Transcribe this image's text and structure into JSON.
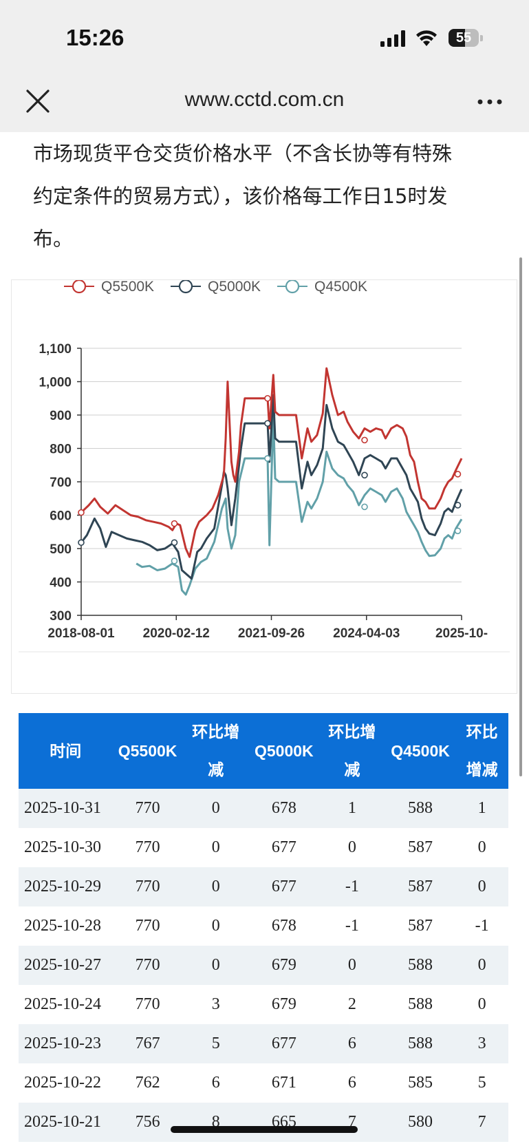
{
  "status_bar": {
    "time": "15:26",
    "battery_level": "55"
  },
  "browser": {
    "url": "www.cctd.com.cn"
  },
  "paragraph": {
    "lines": [
      "市场现货平仓交货价格水平（不含长协等有特殊",
      "约定条件的贸易方式），该价格每工作日15时发",
      "布。"
    ]
  },
  "chart_data": {
    "type": "line",
    "x_tick_labels": [
      "2018-08-01",
      "2020-02-12",
      "2021-09-26",
      "2024-04-03",
      "2025-10-"
    ],
    "y_ticks": [
      "1,100",
      "1,000",
      "900",
      "800",
      "700",
      "600",
      "500",
      "400",
      "300"
    ],
    "ylim": [
      300,
      1100
    ],
    "grid": true,
    "legend_position": "top-left",
    "series": [
      {
        "name": "Q5500K",
        "color": "#c23531",
        "points": [
          [
            0,
            608
          ],
          [
            0.02,
            630
          ],
          [
            0.035,
            650
          ],
          [
            0.05,
            625
          ],
          [
            0.07,
            605
          ],
          [
            0.09,
            630
          ],
          [
            0.11,
            615
          ],
          [
            0.13,
            600
          ],
          [
            0.15,
            595
          ],
          [
            0.17,
            585
          ],
          [
            0.19,
            580
          ],
          [
            0.21,
            575
          ],
          [
            0.23,
            565
          ],
          [
            0.24,
            555
          ],
          [
            0.25,
            575
          ],
          [
            0.26,
            570
          ],
          [
            0.275,
            500
          ],
          [
            0.285,
            475
          ],
          [
            0.3,
            555
          ],
          [
            0.31,
            580
          ],
          [
            0.32,
            590
          ],
          [
            0.33,
            600
          ],
          [
            0.345,
            620
          ],
          [
            0.36,
            660
          ],
          [
            0.375,
            720
          ],
          [
            0.38,
            830
          ],
          [
            0.385,
            1000
          ],
          [
            0.395,
            760
          ],
          [
            0.4,
            720
          ],
          [
            0.405,
            700
          ],
          [
            0.415,
            790
          ],
          [
            0.42,
            870
          ],
          [
            0.43,
            950
          ],
          [
            0.455,
            950
          ],
          [
            0.48,
            950
          ],
          [
            0.49,
            950
          ],
          [
            0.495,
            860
          ],
          [
            0.505,
            1020
          ],
          [
            0.51,
            910
          ],
          [
            0.52,
            900
          ],
          [
            0.55,
            900
          ],
          [
            0.565,
            900
          ],
          [
            0.58,
            770
          ],
          [
            0.595,
            860
          ],
          [
            0.605,
            820
          ],
          [
            0.62,
            840
          ],
          [
            0.635,
            905
          ],
          [
            0.645,
            1040
          ],
          [
            0.66,
            960
          ],
          [
            0.675,
            900
          ],
          [
            0.69,
            910
          ],
          [
            0.7,
            880
          ],
          [
            0.715,
            850
          ],
          [
            0.73,
            830
          ],
          [
            0.745,
            860
          ],
          [
            0.76,
            850
          ],
          [
            0.775,
            860
          ],
          [
            0.79,
            855
          ],
          [
            0.8,
            830
          ],
          [
            0.815,
            860
          ],
          [
            0.83,
            870
          ],
          [
            0.845,
            860
          ],
          [
            0.855,
            835
          ],
          [
            0.865,
            780
          ],
          [
            0.875,
            760
          ],
          [
            0.885,
            700
          ],
          [
            0.895,
            650
          ],
          [
            0.905,
            640
          ],
          [
            0.915,
            620
          ],
          [
            0.93,
            620
          ],
          [
            0.945,
            650
          ],
          [
            0.955,
            680
          ],
          [
            0.965,
            700
          ],
          [
            0.975,
            710
          ],
          [
            0.985,
            735
          ],
          [
            1.0,
            770
          ]
        ],
        "markers": [
          [
            0,
            608
          ],
          [
            0.245,
            575
          ],
          [
            0.49,
            950
          ],
          [
            0.745,
            825
          ],
          [
            0.99,
            723
          ]
        ]
      },
      {
        "name": "Q5000K",
        "color": "#2f4554",
        "points": [
          [
            0,
            518
          ],
          [
            0.015,
            540
          ],
          [
            0.035,
            590
          ],
          [
            0.05,
            560
          ],
          [
            0.065,
            505
          ],
          [
            0.08,
            550
          ],
          [
            0.1,
            540
          ],
          [
            0.12,
            530
          ],
          [
            0.14,
            525
          ],
          [
            0.16,
            520
          ],
          [
            0.18,
            510
          ],
          [
            0.2,
            495
          ],
          [
            0.22,
            500
          ],
          [
            0.24,
            515
          ],
          [
            0.255,
            490
          ],
          [
            0.265,
            435
          ],
          [
            0.28,
            420
          ],
          [
            0.29,
            410
          ],
          [
            0.305,
            490
          ],
          [
            0.315,
            500
          ],
          [
            0.33,
            530
          ],
          [
            0.35,
            560
          ],
          [
            0.37,
            690
          ],
          [
            0.375,
            730
          ],
          [
            0.38,
            720
          ],
          [
            0.385,
            680
          ],
          [
            0.395,
            570
          ],
          [
            0.405,
            650
          ],
          [
            0.42,
            800
          ],
          [
            0.43,
            875
          ],
          [
            0.455,
            875
          ],
          [
            0.48,
            875
          ],
          [
            0.49,
            875
          ],
          [
            0.495,
            760
          ],
          [
            0.505,
            960
          ],
          [
            0.51,
            830
          ],
          [
            0.52,
            820
          ],
          [
            0.55,
            820
          ],
          [
            0.565,
            820
          ],
          [
            0.58,
            680
          ],
          [
            0.595,
            760
          ],
          [
            0.605,
            720
          ],
          [
            0.62,
            750
          ],
          [
            0.635,
            800
          ],
          [
            0.645,
            930
          ],
          [
            0.66,
            860
          ],
          [
            0.675,
            820
          ],
          [
            0.69,
            810
          ],
          [
            0.7,
            790
          ],
          [
            0.715,
            760
          ],
          [
            0.73,
            720
          ],
          [
            0.745,
            770
          ],
          [
            0.76,
            780
          ],
          [
            0.775,
            770
          ],
          [
            0.79,
            760
          ],
          [
            0.8,
            740
          ],
          [
            0.815,
            770
          ],
          [
            0.83,
            770
          ],
          [
            0.845,
            740
          ],
          [
            0.855,
            720
          ],
          [
            0.865,
            680
          ],
          [
            0.875,
            660
          ],
          [
            0.885,
            640
          ],
          [
            0.895,
            590
          ],
          [
            0.905,
            560
          ],
          [
            0.915,
            545
          ],
          [
            0.93,
            540
          ],
          [
            0.945,
            575
          ],
          [
            0.955,
            610
          ],
          [
            0.965,
            620
          ],
          [
            0.975,
            610
          ],
          [
            0.985,
            640
          ],
          [
            1.0,
            678
          ]
        ],
        "markers": [
          [
            0,
            518
          ],
          [
            0.245,
            518
          ],
          [
            0.49,
            875
          ],
          [
            0.745,
            720
          ],
          [
            0.99,
            630
          ]
        ]
      },
      {
        "name": "Q4500K",
        "color": "#61a0a8",
        "points": [
          [
            0.145,
            455
          ],
          [
            0.16,
            445
          ],
          [
            0.18,
            448
          ],
          [
            0.2,
            435
          ],
          [
            0.22,
            440
          ],
          [
            0.24,
            455
          ],
          [
            0.255,
            445
          ],
          [
            0.265,
            375
          ],
          [
            0.275,
            362
          ],
          [
            0.285,
            390
          ],
          [
            0.3,
            440
          ],
          [
            0.315,
            460
          ],
          [
            0.33,
            470
          ],
          [
            0.35,
            520
          ],
          [
            0.37,
            620
          ],
          [
            0.38,
            650
          ],
          [
            0.385,
            560
          ],
          [
            0.395,
            500
          ],
          [
            0.405,
            540
          ],
          [
            0.415,
            700
          ],
          [
            0.43,
            770
          ],
          [
            0.455,
            770
          ],
          [
            0.48,
            770
          ],
          [
            0.49,
            770
          ],
          [
            0.495,
            510
          ],
          [
            0.505,
            900
          ],
          [
            0.51,
            710
          ],
          [
            0.52,
            700
          ],
          [
            0.55,
            700
          ],
          [
            0.565,
            700
          ],
          [
            0.58,
            580
          ],
          [
            0.595,
            640
          ],
          [
            0.605,
            620
          ],
          [
            0.62,
            650
          ],
          [
            0.635,
            700
          ],
          [
            0.645,
            790
          ],
          [
            0.66,
            740
          ],
          [
            0.675,
            720
          ],
          [
            0.69,
            710
          ],
          [
            0.7,
            690
          ],
          [
            0.715,
            670
          ],
          [
            0.73,
            630
          ],
          [
            0.745,
            660
          ],
          [
            0.76,
            680
          ],
          [
            0.775,
            670
          ],
          [
            0.79,
            660
          ],
          [
            0.8,
            640
          ],
          [
            0.815,
            670
          ],
          [
            0.83,
            680
          ],
          [
            0.845,
            650
          ],
          [
            0.855,
            610
          ],
          [
            0.865,
            590
          ],
          [
            0.875,
            570
          ],
          [
            0.885,
            550
          ],
          [
            0.895,
            520
          ],
          [
            0.905,
            495
          ],
          [
            0.915,
            478
          ],
          [
            0.93,
            480
          ],
          [
            0.945,
            500
          ],
          [
            0.955,
            530
          ],
          [
            0.965,
            540
          ],
          [
            0.975,
            530
          ],
          [
            0.985,
            560
          ],
          [
            1.0,
            588
          ]
        ],
        "markers": [
          [
            0.245,
            463
          ],
          [
            0.49,
            770
          ],
          [
            0.745,
            625
          ],
          [
            0.99,
            553
          ]
        ]
      }
    ]
  },
  "table": {
    "headers": [
      {
        "lines": [
          "时间"
        ]
      },
      {
        "lines": [
          "Q5500K"
        ]
      },
      {
        "lines": [
          "环比增",
          "减"
        ]
      },
      {
        "lines": [
          "Q5000K"
        ]
      },
      {
        "lines": [
          "环比增",
          "减"
        ]
      },
      {
        "lines": [
          "Q4500K"
        ]
      },
      {
        "lines": [
          "环比",
          "增减"
        ]
      }
    ],
    "rows": [
      [
        "2025-10-31",
        "770",
        "0",
        "678",
        "1",
        "588",
        "1"
      ],
      [
        "2025-10-30",
        "770",
        "0",
        "677",
        "0",
        "587",
        "0"
      ],
      [
        "2025-10-29",
        "770",
        "0",
        "677",
        "-1",
        "587",
        "0"
      ],
      [
        "2025-10-28",
        "770",
        "0",
        "678",
        "-1",
        "587",
        "-1"
      ],
      [
        "2025-10-27",
        "770",
        "0",
        "679",
        "0",
        "588",
        "0"
      ],
      [
        "2025-10-24",
        "770",
        "3",
        "679",
        "2",
        "588",
        "0"
      ],
      [
        "2025-10-23",
        "767",
        "5",
        "677",
        "6",
        "588",
        "3"
      ],
      [
        "2025-10-22",
        "762",
        "6",
        "671",
        "6",
        "585",
        "5"
      ],
      [
        "2025-10-21",
        "756",
        "8",
        "665",
        "7",
        "580",
        "7"
      ]
    ]
  }
}
